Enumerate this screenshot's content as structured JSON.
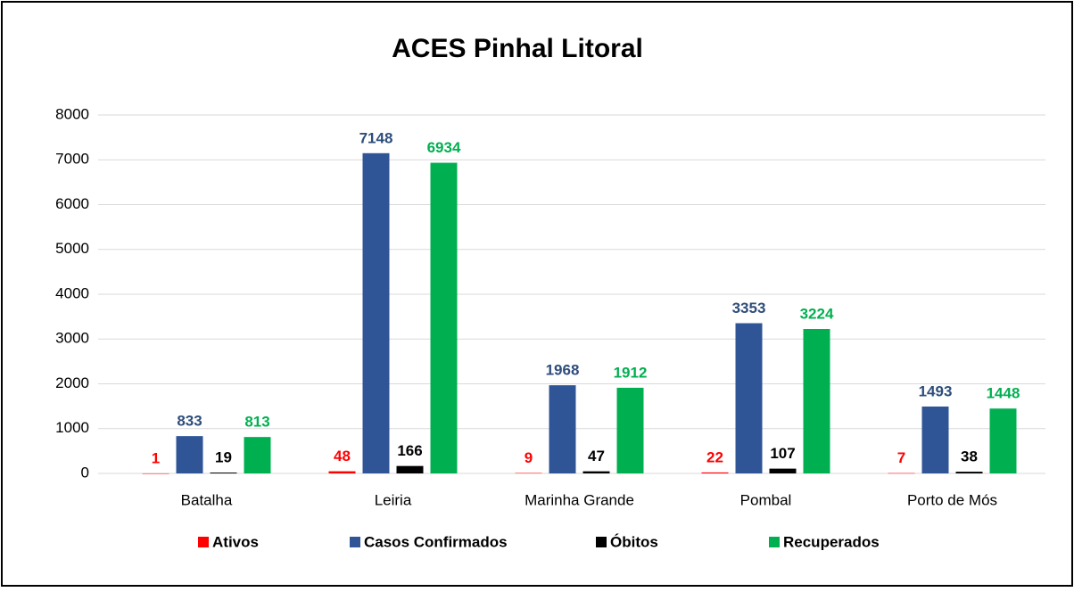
{
  "chart_data": {
    "type": "bar",
    "title": "ACES Pinhal Litoral",
    "categories": [
      "Batalha",
      "Leiria",
      "Marinha Grande",
      "Pombal",
      "Porto de Mós"
    ],
    "series": [
      {
        "name": "Ativos",
        "color": "#ff0000",
        "label_color": "#ff0000",
        "values": [
          1,
          48,
          9,
          22,
          7
        ]
      },
      {
        "name": "Casos Confirmados",
        "color": "#2f5597",
        "label_color": "#2e4d7b",
        "values": [
          833,
          7148,
          1968,
          3353,
          1493
        ]
      },
      {
        "name": "Óbitos",
        "color": "#000000",
        "label_color": "#000000",
        "values": [
          19,
          166,
          47,
          107,
          38
        ]
      },
      {
        "name": "Recuperados",
        "color": "#00b050",
        "label_color": "#00b050",
        "values": [
          813,
          6934,
          1912,
          3224,
          1448
        ]
      }
    ],
    "ylim": [
      0,
      8000
    ],
    "yticks": [
      0,
      1000,
      2000,
      3000,
      4000,
      5000,
      6000,
      7000,
      8000
    ],
    "grid": true,
    "legend": "bottom"
  }
}
